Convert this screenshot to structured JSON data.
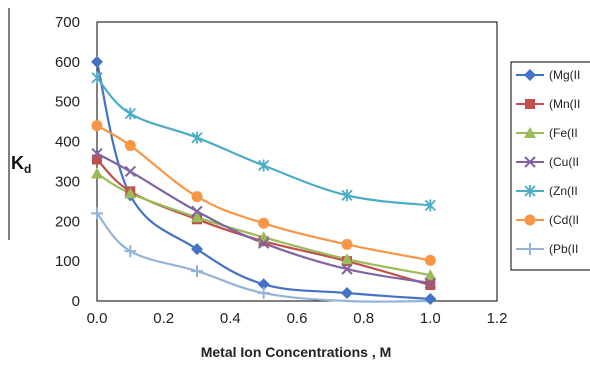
{
  "chart_data": {
    "type": "line",
    "title": "",
    "xlabel": "Metal Ion Concentrations , M",
    "ylabel": "K",
    "ylabel_sub": "d",
    "xlim": [
      0,
      1.2
    ],
    "ylim": [
      0,
      700
    ],
    "xticks": [
      "0.0",
      "0.2",
      "0.4",
      "0.6",
      "0.8",
      "1.0",
      "1.2"
    ],
    "yticks": [
      "0",
      "100",
      "200",
      "300",
      "400",
      "500",
      "600",
      "700"
    ],
    "grid": false,
    "legend_position": "right",
    "series": [
      {
        "name": "(Mg(II",
        "color": "#4472C4",
        "marker": "diamond",
        "x": [
          0.0,
          0.1,
          0.3,
          0.5,
          0.75,
          1.0
        ],
        "y": [
          600,
          265,
          130,
          42,
          20,
          5
        ]
      },
      {
        "name": "(Mn(II",
        "color": "#C0504D",
        "marker": "square",
        "x": [
          0.0,
          0.1,
          0.3,
          0.5,
          0.75,
          1.0
        ],
        "y": [
          355,
          275,
          205,
          150,
          100,
          40
        ]
      },
      {
        "name": "(Fe(II",
        "color": "#9BBB59",
        "marker": "triangle",
        "x": [
          0.0,
          0.1,
          0.3,
          0.5,
          0.75,
          1.0
        ],
        "y": [
          320,
          270,
          210,
          160,
          105,
          65
        ]
      },
      {
        "name": "(Cu(II",
        "color": "#8064A2",
        "marker": "cross",
        "x": [
          0.0,
          0.1,
          0.3,
          0.5,
          0.75,
          1.0
        ],
        "y": [
          370,
          325,
          225,
          145,
          80,
          45
        ]
      },
      {
        "name": "(Zn(II",
        "color": "#4BACC6",
        "marker": "star",
        "x": [
          0.0,
          0.1,
          0.3,
          0.5,
          0.75,
          1.0
        ],
        "y": [
          560,
          470,
          410,
          340,
          265,
          240
        ]
      },
      {
        "name": "(Cd(II",
        "color": "#F79646",
        "marker": "circle",
        "x": [
          0.0,
          0.1,
          0.3,
          0.5,
          0.75,
          1.0
        ],
        "y": [
          440,
          390,
          262,
          195,
          142,
          102
        ]
      },
      {
        "name": "(Pb(II",
        "color": "#95B3D7",
        "marker": "plus",
        "x": [
          0.0,
          0.1,
          0.3,
          0.5,
          0.75,
          1.0
        ],
        "y": [
          220,
          125,
          75,
          20,
          0,
          0
        ]
      }
    ]
  }
}
